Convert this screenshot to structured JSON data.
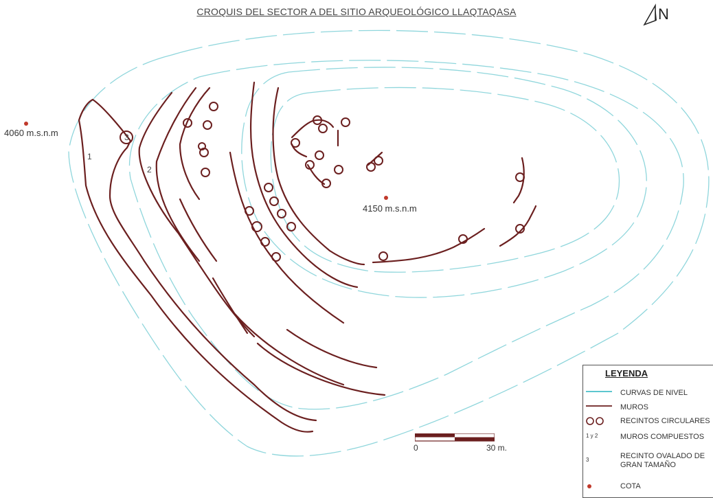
{
  "title": "CROQUIS DEL SECTOR A DEL SITIO ARQUEOLÓGICO LLAQTAQASA",
  "north": "N",
  "cotas": [
    "4060 m.s.n.m",
    "4150 m.s.n.m"
  ],
  "wall_labels": [
    "1",
    "2",
    "3"
  ],
  "scale": {
    "start": "0",
    "end": "30 m."
  },
  "legend": {
    "title": "LEYENDA",
    "items": [
      {
        "symbol": "cyan-line",
        "text": "CURVAS DE NIVEL"
      },
      {
        "symbol": "brown-line",
        "text": "MUROS"
      },
      {
        "symbol": "circles",
        "text": "RECINTOS CIRCULARES"
      },
      {
        "symbol": "1 y 2",
        "text": "MUROS COMPUESTOS"
      },
      {
        "symbol": "3",
        "text": "RECINTO OVALADO DE GRAN TAMAÑO"
      },
      {
        "symbol": "red-dot",
        "text": "COTA"
      }
    ]
  },
  "colors": {
    "contour": "#8fd6dc",
    "wall": "#6b1f1f",
    "cota": "#c0392b"
  }
}
